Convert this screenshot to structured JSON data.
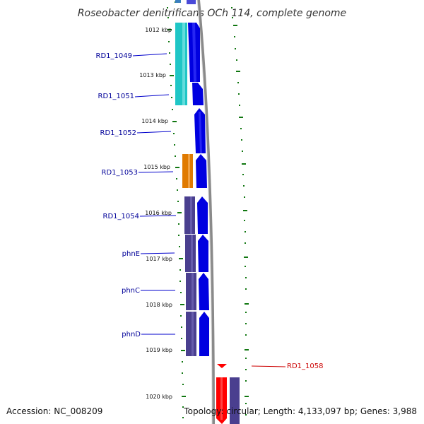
{
  "header": {
    "title": "Roseobacter denitrificans OCh 114, complete genome"
  },
  "footer": {
    "accession": "Accession: NC_008209",
    "topology": "Topology: circular; Length: 4,133,097 bp; Genes: 3,988"
  },
  "ruler": {
    "labels": [
      "1012 kbp",
      "1013 kbp",
      "1014 kbp",
      "1015 kbp",
      "1016 kbp",
      "1017 kbp",
      "1018 kbp",
      "1019 kbp",
      "1020 kbp"
    ]
  },
  "genes": {
    "labels": [
      "RD1_1049",
      "RD1_1051",
      "RD1_1052",
      "RD1_1053",
      "RD1_1054",
      "phnE",
      "phnC",
      "phnD",
      "RD1_1058"
    ]
  },
  "colors": {
    "cyan": "#1fc6c6",
    "blue": "#0000e0",
    "orange": "#e07a00",
    "purple": "#4a3f8f",
    "red": "#ff0000",
    "tick_green": "#117711",
    "backbone": "#888888",
    "label_blue": "#000099",
    "label_red": "#cc0000"
  }
}
